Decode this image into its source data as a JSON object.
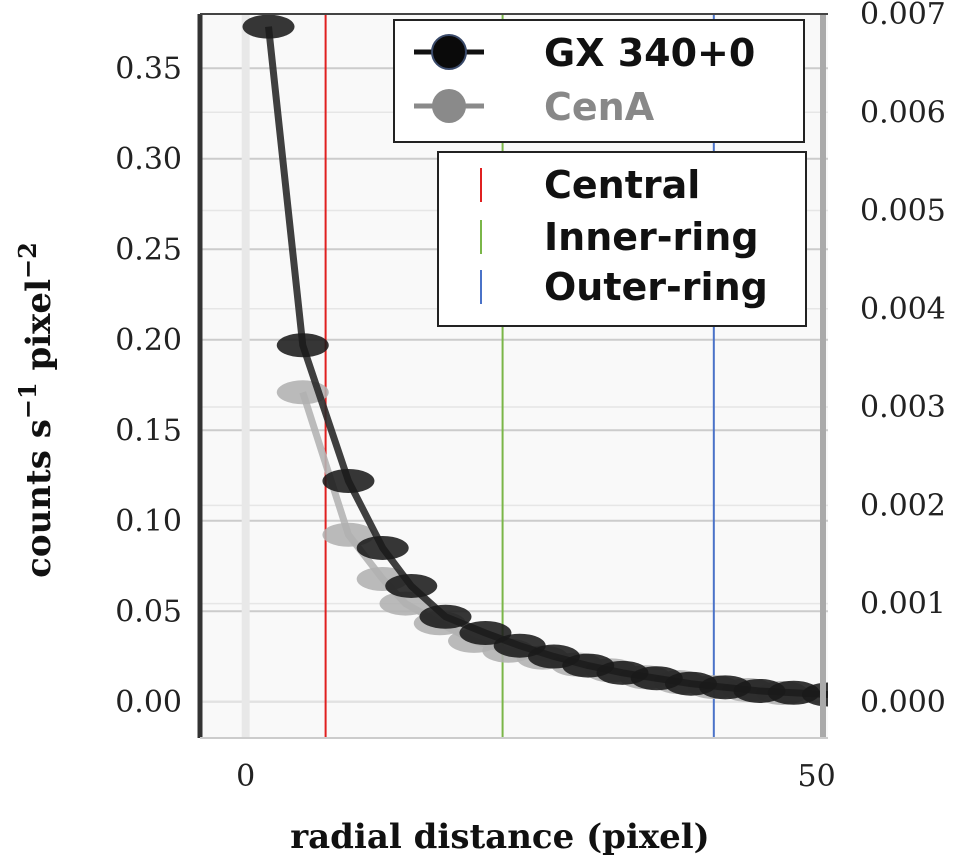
{
  "chart_data": {
    "type": "line",
    "xlabel": "radial distance (pixel)",
    "ylabel_main": "counts s",
    "ylabel_exp": "−1",
    "ylabel_mid": " pixel",
    "ylabel_exp2": "−2",
    "xlim": [
      -4,
      51
    ],
    "ylim": [
      -0.02,
      0.38
    ],
    "ylim_right": [
      -0.000368,
      0.007
    ],
    "x_ticks": [
      {
        "value": 0,
        "label": "0"
      },
      {
        "value": 50,
        "label": "50"
      }
    ],
    "y_ticks": [
      {
        "value": 0.0,
        "label": "0.00"
      },
      {
        "value": 0.05,
        "label": "0.05"
      },
      {
        "value": 0.1,
        "label": "0.10"
      },
      {
        "value": 0.15,
        "label": "0.15"
      },
      {
        "value": 0.2,
        "label": "0.20"
      },
      {
        "value": 0.25,
        "label": "0.25"
      },
      {
        "value": 0.3,
        "label": "0.30"
      },
      {
        "value": 0.35,
        "label": "0.35"
      }
    ],
    "y_ticks_right": [
      {
        "value": 0.0,
        "label": "0.000"
      },
      {
        "value": 0.001,
        "label": "0.001"
      },
      {
        "value": 0.002,
        "label": "0.002"
      },
      {
        "value": 0.003,
        "label": "0.003"
      },
      {
        "value": 0.004,
        "label": "0.004"
      },
      {
        "value": 0.005,
        "label": "0.005"
      },
      {
        "value": 0.006,
        "label": "0.006"
      },
      {
        "value": 0.007,
        "label": "0.007"
      }
    ],
    "grid": true,
    "series": [
      {
        "name": "GX 340+0",
        "color": "#111111",
        "axis": "left",
        "x": [
          2,
          5,
          9,
          12,
          14.5,
          17.5,
          21,
          24,
          27,
          30,
          33,
          36,
          39,
          42,
          45,
          48,
          51
        ],
        "y": [
          0.373,
          0.197,
          0.122,
          0.085,
          0.064,
          0.047,
          0.038,
          0.031,
          0.025,
          0.02,
          0.016,
          0.013,
          0.01,
          0.008,
          0.006,
          0.005,
          0.004
        ]
      },
      {
        "name": "CenA",
        "color": "#8a8a8a",
        "axis": "right",
        "x": [
          5,
          9,
          12,
          14,
          17,
          20,
          23,
          26,
          29,
          32,
          35,
          38,
          41,
          44,
          47
        ],
        "y": [
          0.00315,
          0.0017,
          0.00125,
          0.001,
          0.0008,
          0.00062,
          0.00052,
          0.00045,
          0.00038,
          0.00032,
          0.00025,
          0.0002,
          0.00015,
          0.00012,
          9e-05
        ]
      }
    ],
    "regions": [
      {
        "name": "Central",
        "x": 7,
        "color": "#e02020"
      },
      {
        "name": "Inner-ring",
        "x": 22.5,
        "color": "#7ab648"
      },
      {
        "name": "Outer-ring",
        "x": 41,
        "color": "#4a72c8"
      }
    ],
    "legend_location": "top-right"
  }
}
